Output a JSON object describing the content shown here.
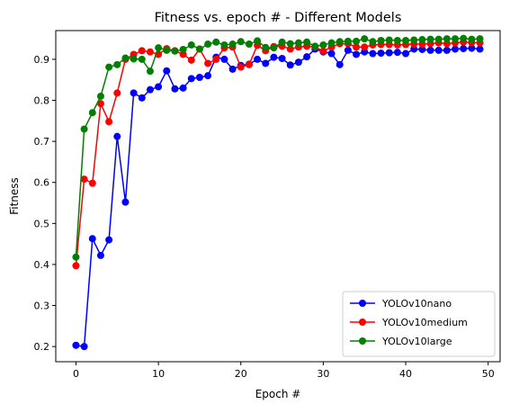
{
  "chart_data": {
    "type": "line",
    "title": "Fitness vs. epoch # - Different Models",
    "xlabel": "Epoch #",
    "ylabel": "Fitness",
    "xlim": [
      -2.45,
      51.45
    ],
    "ylim": [
      0.163,
      0.97
    ],
    "xticks": [
      0,
      10,
      20,
      30,
      40,
      50
    ],
    "yticks": [
      0.2,
      0.3,
      0.4,
      0.5,
      0.6,
      0.7,
      0.8,
      0.9
    ],
    "grid": false,
    "legend_position": "lower-right",
    "x": [
      0,
      1,
      2,
      3,
      4,
      5,
      6,
      7,
      8,
      9,
      10,
      11,
      12,
      13,
      14,
      15,
      16,
      17,
      18,
      19,
      20,
      21,
      22,
      23,
      24,
      25,
      26,
      27,
      28,
      29,
      30,
      31,
      32,
      33,
      34,
      35,
      36,
      37,
      38,
      39,
      40,
      41,
      42,
      43,
      44,
      45,
      46,
      47,
      48,
      49
    ],
    "series": [
      {
        "name": "YOLOv10nano",
        "color": "#0000ff",
        "values": [
          0.203,
          0.2,
          0.463,
          0.422,
          0.46,
          0.712,
          0.552,
          0.818,
          0.806,
          0.826,
          0.833,
          0.872,
          0.828,
          0.83,
          0.853,
          0.856,
          0.86,
          0.905,
          0.9,
          0.876,
          0.885,
          0.888,
          0.9,
          0.89,
          0.905,
          0.902,
          0.886,
          0.893,
          0.906,
          0.925,
          0.918,
          0.914,
          0.887,
          0.922,
          0.912,
          0.918,
          0.914,
          0.915,
          0.916,
          0.917,
          0.914,
          0.925,
          0.924,
          0.922,
          0.922,
          0.922,
          0.925,
          0.926,
          0.927,
          0.925
        ]
      },
      {
        "name": "YOLOv10medium",
        "color": "#ff0000",
        "values": [
          0.397,
          0.608,
          0.598,
          0.792,
          0.748,
          0.818,
          0.9,
          0.912,
          0.921,
          0.918,
          0.912,
          0.926,
          0.921,
          0.912,
          0.898,
          0.925,
          0.89,
          0.9,
          0.928,
          0.93,
          0.881,
          0.887,
          0.934,
          0.921,
          0.931,
          0.932,
          0.925,
          0.93,
          0.932,
          0.93,
          0.92,
          0.93,
          0.938,
          0.938,
          0.93,
          0.93,
          0.935,
          0.936,
          0.936,
          0.935,
          0.936,
          0.937,
          0.937,
          0.938,
          0.94,
          0.938,
          0.94,
          0.942,
          0.941,
          0.94
        ]
      },
      {
        "name": "YOLOv10large",
        "color": "#008000",
        "values": [
          0.418,
          0.73,
          0.77,
          0.81,
          0.881,
          0.887,
          0.903,
          0.901,
          0.9,
          0.871,
          0.928,
          0.922,
          0.92,
          0.924,
          0.935,
          0.925,
          0.937,
          0.942,
          0.935,
          0.937,
          0.943,
          0.937,
          0.945,
          0.929,
          0.928,
          0.942,
          0.938,
          0.94,
          0.942,
          0.932,
          0.935,
          0.94,
          0.943,
          0.944,
          0.944,
          0.95,
          0.943,
          0.946,
          0.947,
          0.946,
          0.946,
          0.947,
          0.948,
          0.949,
          0.949,
          0.95,
          0.95,
          0.951,
          0.949,
          0.95
        ]
      }
    ]
  }
}
